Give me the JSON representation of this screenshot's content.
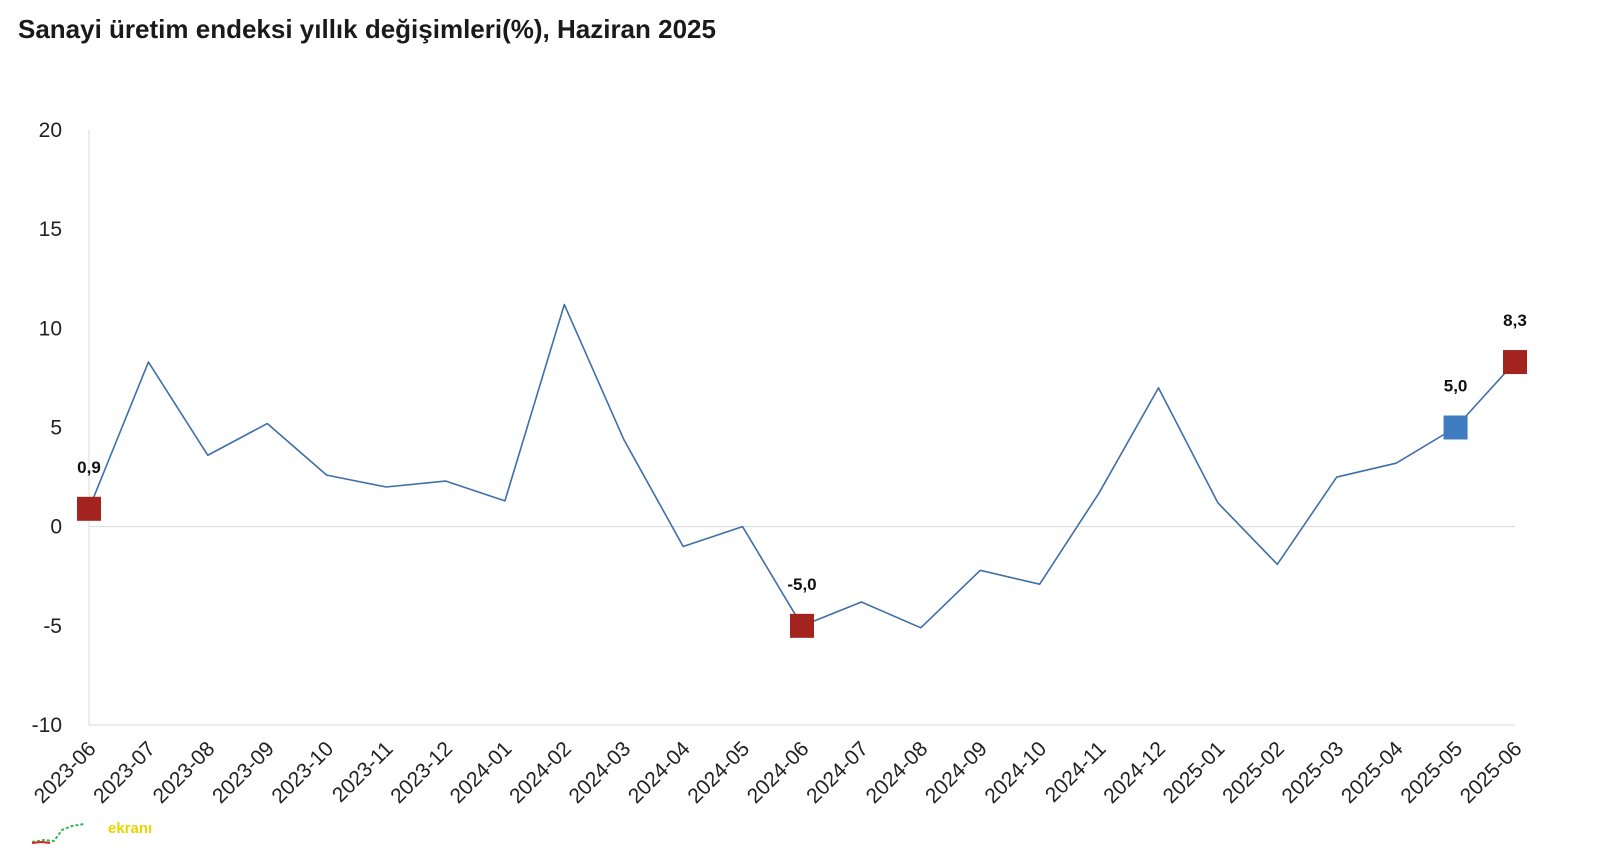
{
  "chart_data": {
    "type": "line",
    "title": "Sanayi üretim endeksi yıllık değişimleri(%), Haziran 2025",
    "categories": [
      "2023-06",
      "2023-07",
      "2023-08",
      "2023-09",
      "2023-10",
      "2023-11",
      "2023-12",
      "2024-01",
      "2024-02",
      "2024-03",
      "2024-04",
      "2024-05",
      "2024-06",
      "2024-07",
      "2024-08",
      "2024-09",
      "2024-10",
      "2024-11",
      "2024-12",
      "2025-01",
      "2025-02",
      "2025-03",
      "2025-04",
      "2025-05",
      "2025-06"
    ],
    "series": [
      {
        "values": [
          0.9,
          8.3,
          3.6,
          5.2,
          2.6,
          2.0,
          2.3,
          1.3,
          11.2,
          4.4,
          -1.0,
          0.0,
          -5.0,
          -3.8,
          -5.1,
          -2.2,
          -2.9,
          1.7,
          7.0,
          1.2,
          -1.9,
          2.5,
          3.2,
          5.0,
          8.3
        ],
        "color": "#3e6fa8"
      }
    ],
    "highlighted_points": [
      {
        "category": "2023-06",
        "value": 0.9,
        "label": "0,9",
        "color": "#a3231f"
      },
      {
        "category": "2024-06",
        "value": -5.0,
        "label": "-5,0",
        "color": "#a3231f"
      },
      {
        "category": "2025-05",
        "value": 5.0,
        "label": "5,0",
        "color": "#3f7cc0"
      },
      {
        "category": "2025-06",
        "value": 8.3,
        "label": "8,3",
        "color": "#a3231f"
      }
    ],
    "y_ticks": [
      "20",
      "15",
      "10",
      "5",
      "0",
      "-5",
      "-10"
    ],
    "ylim": [
      -10,
      20
    ],
    "grid": false,
    "zero_line": true
  },
  "logo": {
    "text": "ekranı"
  }
}
